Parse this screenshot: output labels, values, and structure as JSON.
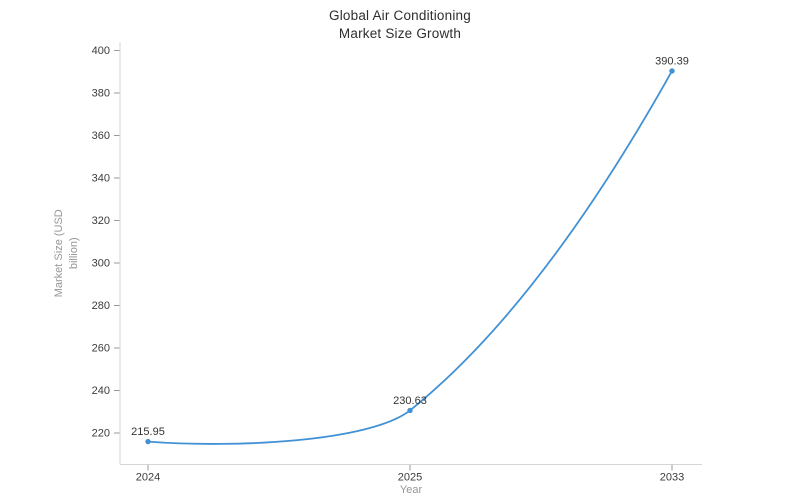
{
  "header": {
    "title_line1": "Global Air Conditioning",
    "title_line2": "Market Size Growth"
  },
  "chart_data": {
    "type": "line",
    "title": "Global Air Conditioning Market Size Growth",
    "x": [
      "2024",
      "2025",
      "2033"
    ],
    "values": [
      215.95,
      230.63,
      390.39
    ],
    "point_labels": [
      "215.95",
      "230.63",
      "390.39"
    ],
    "xlabel": "Year",
    "ylabel": "Market Size (USD billion)",
    "ylabel_lines": [
      "Market Size (USD",
      "billion)"
    ],
    "yticks": [
      220,
      240,
      260,
      280,
      300,
      320,
      340,
      360,
      380,
      400
    ],
    "ylim": [
      205,
      404
    ],
    "x_axis_type": "category",
    "grid": false,
    "legend": false,
    "smooth": true,
    "line_color": "#4291d4",
    "marker_color": "#4291d4",
    "axis_line_color": "#d4d4d4",
    "tick_color": "#9a9a9a",
    "tick_label_color": "#3c3c3c",
    "axis_name_color": "#979797",
    "point_label_color": "#333333",
    "background": "#ffffff"
  }
}
